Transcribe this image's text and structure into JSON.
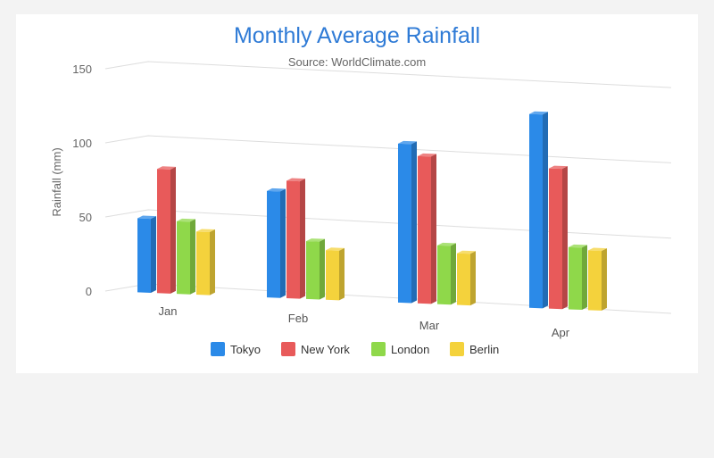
{
  "chart_data": {
    "type": "bar",
    "title": "Monthly Average Rainfall",
    "subtitle": "Source: WorldClimate.com",
    "xlabel": "",
    "ylabel": "Rainfall (mm)",
    "ylim": [
      0,
      150
    ],
    "yticks": [
      0,
      50,
      100,
      150
    ],
    "categories": [
      "Jan",
      "Feb",
      "Mar",
      "Apr"
    ],
    "series": [
      {
        "name": "Tokyo",
        "color": "#2b8ae8",
        "values": [
          49.9,
          71.5,
          106.4,
          129.2
        ]
      },
      {
        "name": "New York",
        "color": "#e85a5a",
        "values": [
          83.6,
          78.8,
          98.5,
          93.4
        ]
      },
      {
        "name": "London",
        "color": "#8fd84a",
        "values": [
          48.9,
          38.8,
          39.3,
          41.4
        ]
      },
      {
        "name": "Berlin",
        "color": "#f4d23c",
        "values": [
          42.4,
          33.2,
          34.5,
          39.7
        ]
      }
    ],
    "grid": true,
    "legend": "bottom-center",
    "style": "3d-column"
  }
}
